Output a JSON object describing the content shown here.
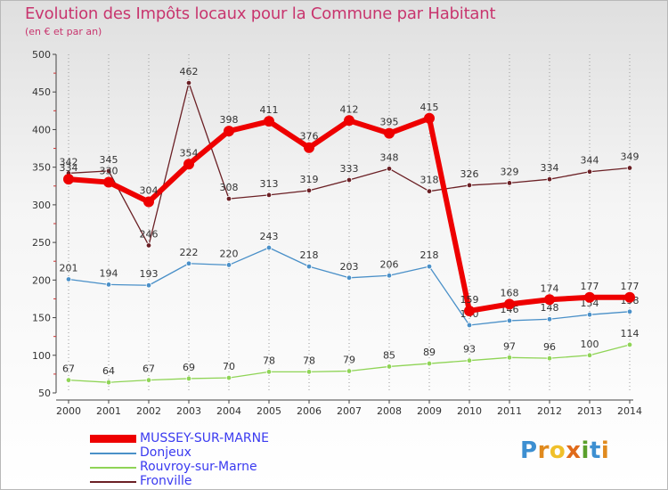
{
  "title": "Evolution des Impôts locaux pour la Commune par Habitant",
  "subtitle": "(en € et par an)",
  "logo": {
    "text": "Proxiti",
    "letters": [
      "P",
      "r",
      "o",
      "x",
      "i",
      "t",
      "i"
    ],
    "colors": [
      "#3d8fd1",
      "#e08a1e",
      "#f0c02a",
      "#e06a1a",
      "#5aa02c",
      "#3d8fd1",
      "#e08a1e"
    ]
  },
  "chart_data": {
    "type": "line",
    "x": [
      "2000",
      "2001",
      "2002",
      "2003",
      "2004",
      "2005",
      "2006",
      "2007",
      "2008",
      "2009",
      "2010",
      "2011",
      "2012",
      "2013",
      "2014"
    ],
    "ylim": [
      50,
      500
    ],
    "yticks": [
      50,
      100,
      150,
      200,
      250,
      300,
      350,
      400,
      450,
      500
    ],
    "grid": "vertical",
    "series": [
      {
        "name": "Fronville",
        "color": "#6b2025",
        "width": 1.3,
        "marker": 2.8,
        "values": [
          342,
          345,
          246,
          462,
          308,
          313,
          319,
          333,
          348,
          318,
          326,
          329,
          334,
          344,
          349
        ]
      },
      {
        "name": "Donjeux",
        "color": "#4a90c8",
        "width": 1.3,
        "marker": 2.8,
        "values": [
          201,
          194,
          193,
          222,
          220,
          243,
          218,
          203,
          206,
          218,
          140,
          146,
          148,
          154,
          158
        ]
      },
      {
        "name": "Rouvroy-sur-Marne",
        "color": "#8fd456",
        "width": 1.3,
        "marker": 2.8,
        "values": [
          67,
          64,
          67,
          69,
          70,
          78,
          78,
          79,
          85,
          89,
          93,
          97,
          96,
          100,
          114
        ]
      },
      {
        "name": "MUSSEY-SUR-MARNE",
        "color": "#ee0000",
        "width": 6,
        "marker": 6,
        "values": [
          334,
          330,
          304,
          354,
          398,
          411,
          376,
          412,
          395,
          415,
          159,
          168,
          174,
          177,
          177
        ]
      }
    ],
    "value_labels": {
      "Fronville": [
        "342",
        "345",
        "246",
        "462",
        "308",
        "313",
        "319",
        "333",
        "348",
        "318",
        "326",
        "329",
        "334",
        "344",
        "349"
      ],
      "Donjeux": [
        "201",
        "194",
        "193",
        "222",
        "220",
        "243",
        "218",
        "203",
        "206",
        "218",
        "140",
        "146",
        "148",
        "154",
        "158"
      ],
      "Rouvroy-sur-Marne": [
        "67",
        "64",
        "67",
        "69",
        "70",
        "78",
        "78",
        "79",
        "85",
        "89",
        "93",
        "97",
        "96",
        "100",
        "114"
      ],
      "MUSSEY-SUR-MARNE": [
        "334",
        "330",
        "304",
        "354",
        "398",
        "411",
        "376",
        "412",
        "395",
        "415",
        "159",
        "168",
        "174",
        "177",
        "177"
      ]
    },
    "legend": [
      "MUSSEY-SUR-MARNE",
      "Donjeux",
      "Rouvroy-sur-Marne",
      "Fronville"
    ],
    "legend_position": "bottom-left"
  }
}
